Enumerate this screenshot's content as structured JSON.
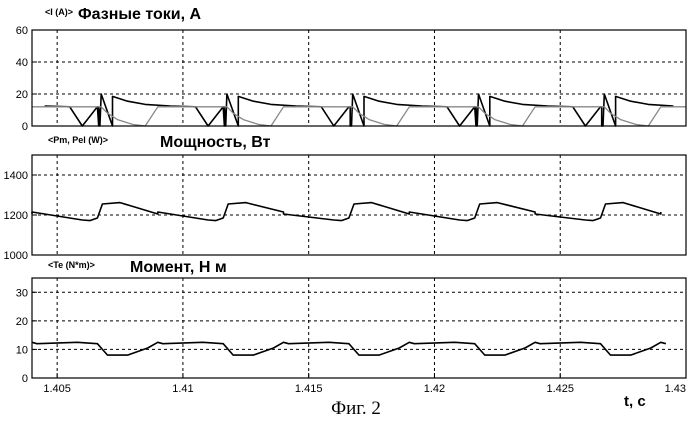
{
  "figure": {
    "caption": "Фиг. 2"
  },
  "x_axis": {
    "label": "t, c",
    "ticks": [
      "1.405",
      "1.41",
      "1.415",
      "1.42",
      "1.425",
      "1.43"
    ],
    "xlim": [
      1.404,
      1.43
    ]
  },
  "chart_data": [
    {
      "type": "line",
      "signal_tag": "<I (A)>",
      "title": "Фазные токи, А",
      "ylim": [
        0,
        60
      ],
      "yticks": [
        "0",
        "20",
        "40",
        "60"
      ],
      "grid": true,
      "period_s": 0.005,
      "series": [
        {
          "color": "#000000",
          "x": [
            1.406,
            1.40665,
            1.40675,
            1.4072,
            1.4078,
            1.4085,
            1.4095,
            1.4105,
            1.4116,
            1.41165,
            1.4117,
            1.4122
          ],
          "y": [
            0,
            0,
            20,
            18.5,
            15.5,
            13.5,
            12.5,
            12,
            12,
            12,
            0,
            0
          ]
        },
        {
          "color": "#888888",
          "x": [
            1.404,
            1.405,
            1.406,
            1.40665,
            1.40675,
            1.407,
            1.4074,
            1.408,
            1.4085
          ],
          "y": [
            12,
            12,
            12,
            12,
            12,
            8,
            4,
            1,
            0
          ]
        }
      ]
    },
    {
      "type": "line",
      "signal_tag": "<Pm, Pel (W)>",
      "title": "Мощность, Вт",
      "ylim": [
        1000,
        1500
      ],
      "yticks": [
        "1000",
        "1200",
        "1400"
      ],
      "grid": true,
      "period_s": 0.005,
      "series": [
        {
          "color": "#000000",
          "x": [
            1.404,
            1.406,
            1.4063,
            1.4066,
            1.4068,
            1.4075,
            1.409
          ],
          "y": [
            1205,
            1175,
            1172,
            1185,
            1255,
            1262,
            1215
          ]
        }
      ]
    },
    {
      "type": "line",
      "signal_tag": "<Te (N*m)>",
      "title": "Момент, Н м",
      "ylim": [
        0,
        35
      ],
      "yticks": [
        "0",
        "10",
        "20",
        "30"
      ],
      "grid": true,
      "period_s": 0.005,
      "series": [
        {
          "color": "#000000",
          "x": [
            1.404,
            1.4058,
            1.4066,
            1.407,
            1.4078,
            1.4086,
            1.4092
          ],
          "y": [
            12.5,
            12.5,
            12,
            8,
            8,
            10.5,
            12
          ]
        }
      ]
    }
  ]
}
